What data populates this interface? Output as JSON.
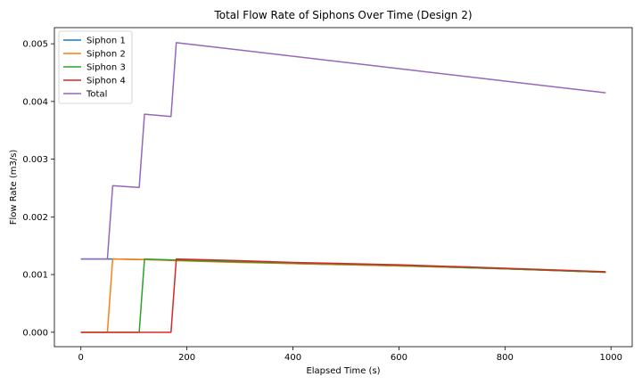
{
  "chart_data": {
    "type": "line",
    "title": "Total Flow Rate of Siphons Over Time (Design 2)",
    "xlabel": "Elapsed Time (s)",
    "ylabel": "Flow Rate (m3/s)",
    "xlim": [
      -50,
      1040
    ],
    "ylim": [
      -0.00025,
      0.00528
    ],
    "xticks": [
      0,
      200,
      400,
      600,
      800,
      1000
    ],
    "xtick_labels": [
      "0",
      "200",
      "400",
      "600",
      "800",
      "1000"
    ],
    "yticks": [
      0,
      0.001,
      0.002,
      0.003,
      0.004,
      0.005
    ],
    "ytick_labels": [
      "0.000",
      "0.001",
      "0.002",
      "0.003",
      "0.004",
      "0.005"
    ],
    "grid": false,
    "legend_position": "top-left",
    "series": [
      {
        "name": "Siphon 1",
        "color": "#1f77b4",
        "x": [
          0,
          50,
          60,
          120,
          180,
          300,
          400,
          600,
          800,
          990
        ],
        "y": [
          0.00127,
          0.00127,
          0.00127,
          0.00126,
          0.00125,
          0.00122,
          0.00119,
          0.00115,
          0.0011,
          0.00104
        ]
      },
      {
        "name": "Siphon 2",
        "color": "#ff7f0e",
        "x": [
          0,
          50,
          60,
          120,
          180,
          300,
          400,
          600,
          800,
          990
        ],
        "y": [
          0,
          0,
          0.00127,
          0.00126,
          0.00124,
          0.00121,
          0.00119,
          0.00115,
          0.0011,
          0.00104
        ]
      },
      {
        "name": "Siphon 3",
        "color": "#2ca02c",
        "x": [
          0,
          110,
          120,
          180,
          300,
          400,
          600,
          800,
          990
        ],
        "y": [
          0,
          0,
          0.00127,
          0.00125,
          0.00122,
          0.0012,
          0.00116,
          0.0011,
          0.00104
        ]
      },
      {
        "name": "Siphon 4",
        "color": "#d62728",
        "x": [
          0,
          170,
          180,
          300,
          400,
          600,
          800,
          990
        ],
        "y": [
          0,
          0,
          0.00127,
          0.00124,
          0.00121,
          0.00117,
          0.00111,
          0.00105
        ]
      },
      {
        "name": "Total",
        "color": "#9467bd",
        "x": [
          0,
          50,
          60,
          110,
          120,
          170,
          180,
          990
        ],
        "y": [
          0.00127,
          0.00127,
          0.00254,
          0.00251,
          0.00378,
          0.00374,
          0.00502,
          0.00415
        ]
      }
    ]
  }
}
